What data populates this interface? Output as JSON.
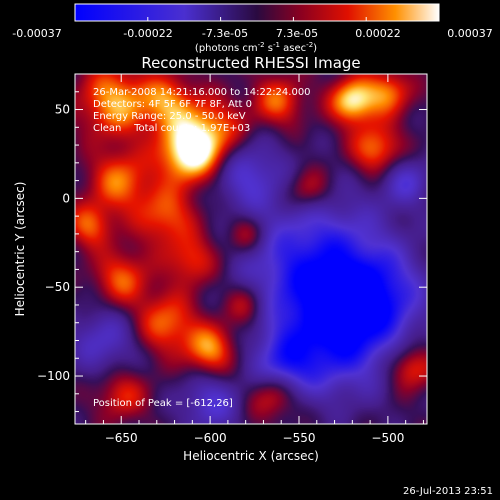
{
  "colorbar": {
    "ticks": [
      "-0.00037",
      "-0.00022",
      "-7.3e-05",
      "7.3e-05",
      "0.00022",
      "0.00037"
    ],
    "units_main": "(photons cm",
    "units_exp1": "-2",
    "units_mid": " s",
    "units_exp2": "-1",
    "units_end": " asec",
    "units_exp3": "-2",
    "units_close": ")"
  },
  "chart_data": {
    "type": "heatmap",
    "title": "Reconstructed RHESSI Image",
    "xlabel": "Heliocentric X (arcsec)",
    "ylabel": "Heliocentric Y (arcsec)",
    "xlim": [
      -676,
      -478
    ],
    "ylim": [
      -127,
      70
    ],
    "xticks": [
      -650,
      -600,
      -550,
      -500
    ],
    "yticks": [
      -100,
      -50,
      0,
      50
    ],
    "colormap": "blue-purple-red-yellow-white (symmetric)",
    "value_range": [
      -0.00037,
      0.00037
    ],
    "peak_position": [
      -612,
      26
    ],
    "hotspots": [
      {
        "x": -612,
        "y": 26,
        "sigma": 12,
        "level": 1.0
      },
      {
        "x": -654,
        "y": 55,
        "sigma": 14,
        "level": 0.72
      },
      {
        "x": -624,
        "y": 54,
        "sigma": 11,
        "level": 0.6
      },
      {
        "x": -598,
        "y": 38,
        "sigma": 13,
        "level": 0.55
      },
      {
        "x": -562,
        "y": 55,
        "sigma": 10,
        "level": 0.55
      },
      {
        "x": -520,
        "y": 55,
        "sigma": 9,
        "level": 0.9
      },
      {
        "x": -500,
        "y": 60,
        "sigma": 9,
        "level": 0.6
      },
      {
        "x": -507,
        "y": 28,
        "sigma": 10,
        "level": 0.65
      },
      {
        "x": -545,
        "y": 5,
        "sigma": 9,
        "level": 0.45
      },
      {
        "x": -651,
        "y": 10,
        "sigma": 12,
        "level": 0.6
      },
      {
        "x": -668,
        "y": -15,
        "sigma": 9,
        "level": 0.55
      },
      {
        "x": -625,
        "y": -10,
        "sigma": 12,
        "level": 0.55
      },
      {
        "x": -650,
        "y": -45,
        "sigma": 11,
        "level": 0.55
      },
      {
        "x": -610,
        "y": -35,
        "sigma": 10,
        "level": 0.5
      },
      {
        "x": -625,
        "y": -70,
        "sigma": 12,
        "level": 0.6
      },
      {
        "x": -600,
        "y": -85,
        "sigma": 10,
        "level": 0.7
      },
      {
        "x": -580,
        "y": -60,
        "sigma": 9,
        "level": 0.45
      },
      {
        "x": -650,
        "y": -110,
        "sigma": 10,
        "level": 0.45
      },
      {
        "x": -565,
        "y": -110,
        "sigma": 10,
        "level": 0.55
      },
      {
        "x": -487,
        "y": -95,
        "sigma": 9,
        "level": 0.55
      },
      {
        "x": -580,
        "y": -20,
        "sigma": 8,
        "level": 0.4
      }
    ],
    "coldspots": [
      {
        "x": -540,
        "y": -40,
        "sigma": 28,
        "level": 0.85
      },
      {
        "x": -530,
        "y": -80,
        "sigma": 22,
        "level": 0.7
      },
      {
        "x": -505,
        "y": -55,
        "sigma": 18,
        "level": 0.6
      },
      {
        "x": -660,
        "y": -80,
        "sigma": 14,
        "level": 0.45
      },
      {
        "x": -580,
        "y": 15,
        "sigma": 14,
        "level": 0.5
      },
      {
        "x": -600,
        "y": -115,
        "sigma": 12,
        "level": 0.5
      },
      {
        "x": -490,
        "y": 10,
        "sigma": 10,
        "level": 0.45
      },
      {
        "x": -560,
        "y": -95,
        "sigma": 12,
        "level": 0.55
      }
    ]
  },
  "annotations": {
    "line1": "26-Mar-2008 14:21:16.000 to 14:22:24.000",
    "line2": "Detectors: 4F 5F 6F 7F 8F, Att 0",
    "line3": "Energy Range: 25.0 - 50.0 keV",
    "line4": "Clean    Total counts: 1.97E+03",
    "peak": "Position of Peak = [-612,26]"
  },
  "timestamp": "26-Jul-2013 23:51"
}
